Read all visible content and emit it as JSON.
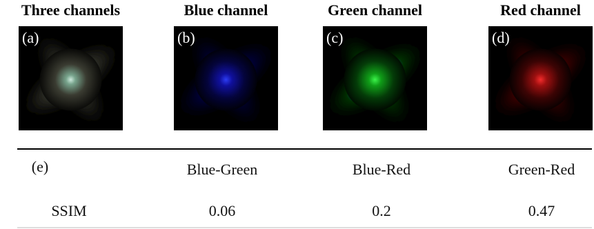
{
  "panels": [
    {
      "title": "Three channels",
      "label": "(a)"
    },
    {
      "title": "Blue channel",
      "label": "(b)"
    },
    {
      "title": "Green channel",
      "label": "(c)"
    },
    {
      "title": "Red channel",
      "label": "(d)"
    }
  ],
  "table": {
    "label": "(e)",
    "columns": [
      "Blue-Green",
      "Blue-Red",
      "Green-Red"
    ],
    "rows": [
      {
        "name": "SSIM",
        "values": [
          0.06,
          0.2,
          0.47
        ]
      }
    ]
  }
}
